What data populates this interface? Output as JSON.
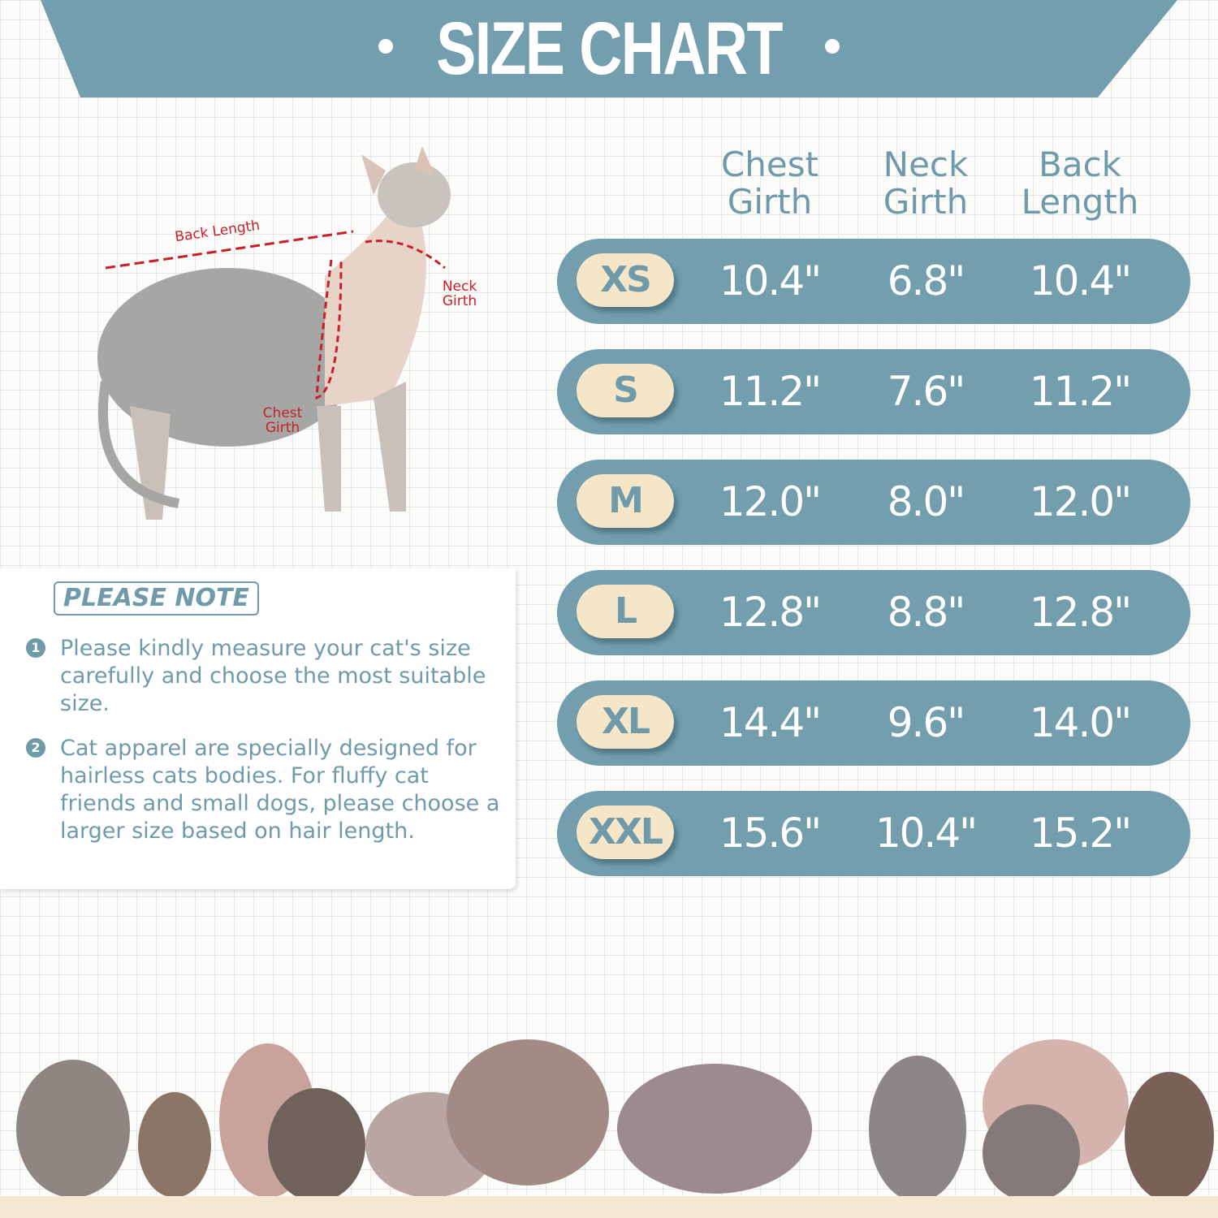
{
  "header": {
    "title": "SIZE CHART"
  },
  "diagram": {
    "labels": {
      "back_length": "Back Length",
      "neck_girth": "Neck Girth",
      "chest_girth": "Chest Girth"
    }
  },
  "table": {
    "columns": [
      "Chest Girth",
      "Neck Girth",
      "Back Length"
    ],
    "rows": [
      {
        "size": "XS",
        "values": [
          "10.4\"",
          "6.8\"",
          "10.4\""
        ]
      },
      {
        "size": "S",
        "values": [
          "11.2\"",
          "7.6\"",
          "11.2\""
        ]
      },
      {
        "size": "M",
        "values": [
          "12.0\"",
          "8.0\"",
          "12.0\""
        ]
      },
      {
        "size": "L",
        "values": [
          "12.8\"",
          "8.8\"",
          "12.8\""
        ]
      },
      {
        "size": "XL",
        "values": [
          "14.4\"",
          "9.6\"",
          "14.0\""
        ]
      },
      {
        "size": "XXL",
        "values": [
          "15.6\"",
          "10.4\"",
          "15.2\""
        ]
      }
    ]
  },
  "note": {
    "heading": "PLEASE NOTE",
    "items": [
      {
        "number": "1",
        "text": "Please kindly measure your cat's size carefully and choose the most suitable size."
      },
      {
        "number": "2",
        "text": "Cat apparel are specially designed for hairless cats bodies. For fluffy cat friends and small dogs, please choose a larger size based on hair length."
      }
    ]
  },
  "colors": {
    "accent": "#729eae",
    "pill": "#f5e6c8",
    "measure": "#c8202a"
  }
}
